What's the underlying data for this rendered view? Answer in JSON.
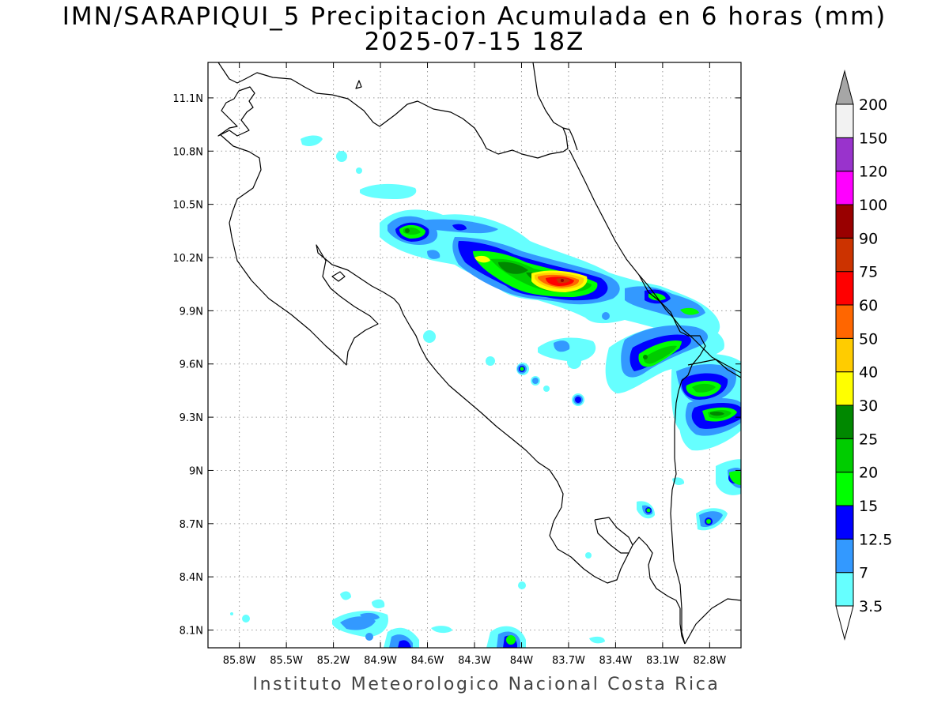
{
  "title": {
    "line1": "IMN/SARAPIQUI_5 Precipitacion Acumulada en 6 horas (mm)",
    "line2": "2025-07-15 18Z"
  },
  "footer": "Instituto Meteorologico Nacional Costa Rica",
  "map": {
    "lon_range": [
      -86.0,
      -82.6
    ],
    "lat_range": [
      8.0,
      11.3
    ],
    "x_ticks": [
      "85.8W",
      "85.5W",
      "85.2W",
      "84.9W",
      "84.6W",
      "84.3W",
      "84W",
      "83.7W",
      "83.4W",
      "83.1W",
      "82.8W"
    ],
    "y_ticks": [
      "11.1N",
      "10.8N",
      "10.5N",
      "10.2N",
      "9.9N",
      "9.6N",
      "9.3N",
      "9N",
      "8.7N",
      "8.4N",
      "8.1N"
    ],
    "grid": true
  },
  "colorbar": {
    "labels": [
      "3.5",
      "7",
      "12.5",
      "15",
      "20",
      "25",
      "30",
      "40",
      "50",
      "60",
      "75",
      "90",
      "100",
      "120",
      "150",
      "200"
    ],
    "colors": [
      "#66ffff",
      "#3399ff",
      "#0000ff",
      "#00ff00",
      "#00cc00",
      "#008800",
      "#ffff00",
      "#ffcc00",
      "#ff6600",
      "#ff0000",
      "#cc3300",
      "#990000",
      "#ff00ff",
      "#9933cc",
      "#f2f2f2"
    ],
    "over_color": "#a6a6a6"
  }
}
